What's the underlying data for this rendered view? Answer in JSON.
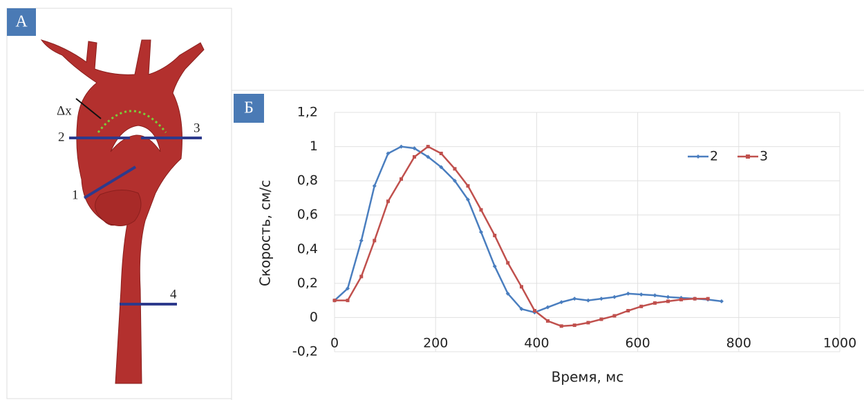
{
  "diagram": {
    "panel_label": "А",
    "labels": {
      "dx": "Δx",
      "s1": "1",
      "s2": "2",
      "s3": "3",
      "s4": "4"
    }
  },
  "chart_data": {
    "type": "line",
    "panel_label": "Б",
    "x_label": "Время, мс",
    "y_label": "Скорость, см/с",
    "xlim": [
      0,
      1000
    ],
    "xticks": [
      0,
      200,
      400,
      600,
      800,
      1000
    ],
    "ylim": [
      -0.2,
      1.2
    ],
    "yticks": [
      {
        "value": -0.2,
        "label": "-0,2"
      },
      0,
      {
        "value": 0.2,
        "label": "0,2"
      },
      {
        "value": 0.4,
        "label": "0,4"
      },
      {
        "value": 0.6,
        "label": "0,6"
      },
      {
        "value": 0.8,
        "label": "0,8"
      },
      1,
      {
        "value": 1.2,
        "label": "1,2"
      }
    ],
    "grid": true,
    "legend": "upper right",
    "series": [
      {
        "name": "2",
        "color": "#4a7ebf",
        "marker": "diamond",
        "x": [
          0,
          26,
          53,
          79,
          106,
          132,
          158,
          185,
          211,
          238,
          264,
          290,
          317,
          343,
          370,
          396,
          422,
          449,
          475,
          502,
          528,
          554,
          581,
          607,
          634,
          660,
          686,
          713,
          739,
          766
        ],
        "values": [
          0.1,
          0.17,
          0.45,
          0.77,
          0.96,
          1.0,
          0.99,
          0.94,
          0.88,
          0.8,
          0.69,
          0.5,
          0.3,
          0.14,
          0.05,
          0.03,
          0.06,
          0.09,
          0.11,
          0.1,
          0.11,
          0.12,
          0.14,
          0.135,
          0.13,
          0.12,
          0.115,
          0.11,
          0.105,
          0.095
        ]
      },
      {
        "name": "3",
        "color": "#c0504d",
        "marker": "square",
        "x": [
          0,
          26,
          53,
          79,
          106,
          132,
          158,
          185,
          211,
          238,
          264,
          290,
          317,
          343,
          370,
          396,
          422,
          449,
          475,
          502,
          528,
          554,
          581,
          607,
          634,
          660,
          686,
          713,
          739
        ],
        "values": [
          0.1,
          0.1,
          0.24,
          0.45,
          0.68,
          0.81,
          0.94,
          1.0,
          0.96,
          0.87,
          0.77,
          0.63,
          0.48,
          0.32,
          0.18,
          0.04,
          -0.02,
          -0.05,
          -0.045,
          -0.03,
          -0.01,
          0.01,
          0.04,
          0.065,
          0.085,
          0.095,
          0.105,
          0.11,
          0.11
        ]
      }
    ]
  }
}
